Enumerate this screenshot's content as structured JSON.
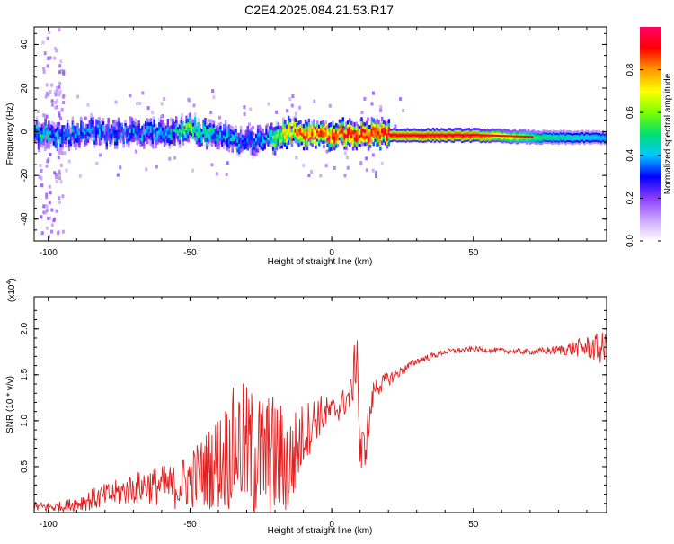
{
  "title": "C2E4.2025.084.21.53.R17",
  "chart_data": [
    {
      "type": "heatmap",
      "xlabel": "Height of straight line (km)",
      "ylabel": "Frequency (Hz)",
      "xlim": [
        -105,
        97
      ],
      "ylim": [
        -50,
        48
      ],
      "x_ticks": [
        -100,
        -50,
        0,
        50
      ],
      "y_ticks": [
        -40,
        -20,
        0,
        20,
        40
      ],
      "colorbar": {
        "label": "Normalized spectral amplitude",
        "range": [
          0,
          1
        ],
        "ticks": [
          "0.0",
          "0.2",
          "0.4",
          "0.6",
          "0.8"
        ],
        "colors": [
          "#ffffff",
          "#c9a6ff",
          "#8b3dff",
          "#0000ff",
          "#00c8ff",
          "#00e070",
          "#7cff00",
          "#ffff00",
          "#ff9900",
          "#ff0000",
          "#ff0066"
        ]
      },
      "ridge": [
        {
          "x": -105,
          "f": 0.0,
          "amp": 0.45
        },
        {
          "x": -95,
          "f": -1.5,
          "amp": 0.35
        },
        {
          "x": -85,
          "f": 0.5,
          "amp": 0.35
        },
        {
          "x": -75,
          "f": -1.0,
          "amp": 0.35
        },
        {
          "x": -60,
          "f": 0.0,
          "amp": 0.35
        },
        {
          "x": -50,
          "f": 1.0,
          "amp": 0.55
        },
        {
          "x": -40,
          "f": -2.0,
          "amp": 0.4
        },
        {
          "x": -30,
          "f": -5.0,
          "amp": 0.35
        },
        {
          "x": -25,
          "f": -4.0,
          "amp": 0.35
        },
        {
          "x": -15,
          "f": 0.0,
          "amp": 0.8
        },
        {
          "x": -5,
          "f": -1.0,
          "amp": 0.85
        },
        {
          "x": 10,
          "f": -1.0,
          "amp": 0.9
        },
        {
          "x": 25,
          "f": -1.5,
          "amp": 0.9
        },
        {
          "x": 50,
          "f": -1.5,
          "amp": 0.9
        },
        {
          "x": 75,
          "f": -2.5,
          "amp": 0.5
        },
        {
          "x": 97,
          "f": -2.5,
          "amp": 0.4
        }
      ]
    },
    {
      "type": "line",
      "xlabel": "Height of straight line (km)",
      "ylabel": "SNR (10 * v/v)",
      "y_multiplier_label": "(x10",
      "y_multiplier_exp": "4",
      "y_multiplier_close": ")",
      "xlim": [
        -105,
        97
      ],
      "ylim": [
        0,
        2.35
      ],
      "x_ticks": [
        -100,
        -50,
        0,
        50
      ],
      "y_ticks": [
        "0.5",
        "1.0",
        "1.5",
        "2.0"
      ],
      "color": "#e02020",
      "series": [
        {
          "name": "SNR",
          "x": [
            -105,
            -95,
            -85,
            -75,
            -65,
            -55,
            -45,
            -38,
            -33,
            -27,
            -20,
            -15,
            -10,
            -5,
            0,
            3,
            7,
            9,
            10,
            12,
            15,
            20,
            25,
            30,
            40,
            50,
            60,
            70,
            80,
            90,
            97
          ],
          "mean": [
            0.06,
            0.06,
            0.14,
            0.22,
            0.3,
            0.28,
            0.45,
            0.6,
            0.75,
            0.6,
            0.6,
            0.5,
            0.85,
            1.05,
            1.1,
            1.15,
            1.3,
            1.8,
            0.6,
            0.75,
            1.35,
            1.45,
            1.55,
            1.65,
            1.75,
            1.78,
            1.76,
            1.75,
            1.77,
            1.8,
            1.78
          ],
          "amplitude": [
            0.06,
            0.06,
            0.12,
            0.15,
            0.2,
            0.25,
            0.4,
            0.6,
            0.7,
            0.75,
            0.7,
            0.6,
            0.35,
            0.25,
            0.15,
            0.15,
            0.2,
            0.35,
            0.3,
            0.25,
            0.12,
            0.08,
            0.05,
            0.04,
            0.03,
            0.03,
            0.03,
            0.03,
            0.05,
            0.12,
            0.2
          ]
        }
      ]
    }
  ]
}
